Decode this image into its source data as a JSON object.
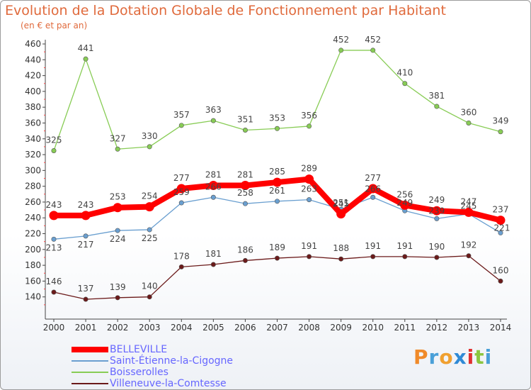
{
  "title": "Evolution de la Dotation Globale de Fonctionnement par Habitant",
  "subtitle": "(en € et par an)",
  "logo": "Proxiti",
  "logo_colors": [
    "#f08a2a",
    "#4aa0d8",
    "#f0a030",
    "#2f8ad6",
    "#e03030",
    "#8cc63f",
    "#4aa0d8"
  ],
  "chart_data": {
    "type": "line",
    "title": "Evolution de la Dotation Globale de Fonctionnement par Habitant",
    "subtitle": "(en € et par an)",
    "xlabel": "",
    "ylabel": "",
    "x": [
      "2000",
      "2001",
      "2002",
      "2003",
      "2004",
      "2005",
      "2006",
      "2007",
      "2008",
      "2009",
      "2010",
      "2011",
      "2012",
      "2013",
      "2014"
    ],
    "ylim": [
      120,
      460
    ],
    "yticks": [
      140,
      160,
      180,
      200,
      220,
      240,
      260,
      280,
      300,
      320,
      340,
      360,
      380,
      400,
      420,
      440,
      460
    ],
    "grid": false,
    "legend_position": "bottom-left",
    "series": [
      {
        "name": "BELLEVILLE",
        "color": "#ff0000",
        "values": [
          243,
          243,
          253,
          254,
          277,
          281,
          281,
          285,
          289,
          245,
          277,
          256,
          249,
          247,
          237
        ]
      },
      {
        "name": "Saint-Étienne-la-Cigogne",
        "color": "#6a9fd0",
        "values": [
          213,
          217,
          224,
          225,
          259,
          266,
          258,
          261,
          263,
          251,
          266,
          249,
          239,
          245,
          221
        ]
      },
      {
        "name": "Boisserolles",
        "color": "#88cc55",
        "values": [
          325,
          441,
          327,
          330,
          357,
          363,
          351,
          353,
          356,
          452,
          452,
          410,
          381,
          360,
          349
        ]
      },
      {
        "name": "Villeneuve-la-Comtesse",
        "color": "#6b1a1a",
        "values": [
          146,
          137,
          139,
          140,
          178,
          181,
          186,
          189,
          191,
          188,
          191,
          191,
          190,
          192,
          160
        ]
      }
    ]
  }
}
